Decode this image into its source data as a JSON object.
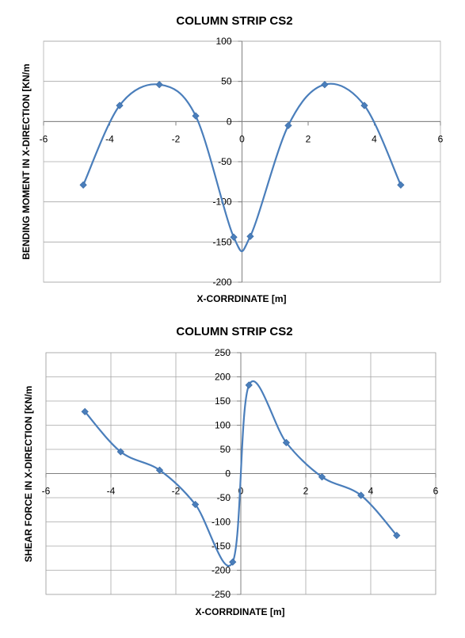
{
  "chart_data": [
    {
      "type": "scatter",
      "title": "COLUMN STRIP CS2",
      "xlabel": "X-CORRDINATE [m]",
      "ylabel": "BENDING MOMENT IN X-DIRECTION [KN/m",
      "xlim": [
        -6,
        6
      ],
      "ylim": [
        -200,
        100
      ],
      "xticks": [
        -6,
        -4,
        -2,
        0,
        2,
        4,
        6
      ],
      "yticks": [
        100,
        50,
        0,
        -50,
        -100,
        -150,
        -200
      ],
      "grid": "horizontal",
      "smooth": true,
      "color": "#4a7ebb",
      "series": [
        {
          "x": [
            -4.8,
            -3.7,
            -2.5,
            -1.4,
            -0.25,
            0.25,
            1.4,
            2.5,
            3.7,
            4.8
          ],
          "y": [
            -79,
            20,
            46,
            7,
            -144,
            -143,
            -5,
            46,
            20,
            -79
          ]
        }
      ]
    },
    {
      "type": "scatter",
      "title": "COLUMN STRIP CS2",
      "xlabel": "X-CORRDINATE [m]",
      "ylabel": "SHEAR FORCE IN X-DIRECTION [KN/m",
      "xlim": [
        -6,
        6
      ],
      "ylim": [
        -250,
        250
      ],
      "xticks": [
        -6,
        -4,
        -2,
        0,
        2,
        4,
        6
      ],
      "yticks": [
        250,
        200,
        150,
        100,
        50,
        0,
        -50,
        -100,
        -150,
        -200,
        -250
      ],
      "grid": "both",
      "smooth": true,
      "color": "#4a7ebb",
      "series": [
        {
          "x": [
            -4.8,
            -3.7,
            -2.5,
            -1.4,
            -0.25,
            0.25,
            1.4,
            2.5,
            3.7,
            4.8
          ],
          "y": [
            128,
            45,
            7,
            -64,
            -183,
            183,
            64,
            -7,
            -45,
            -128
          ]
        }
      ]
    }
  ]
}
